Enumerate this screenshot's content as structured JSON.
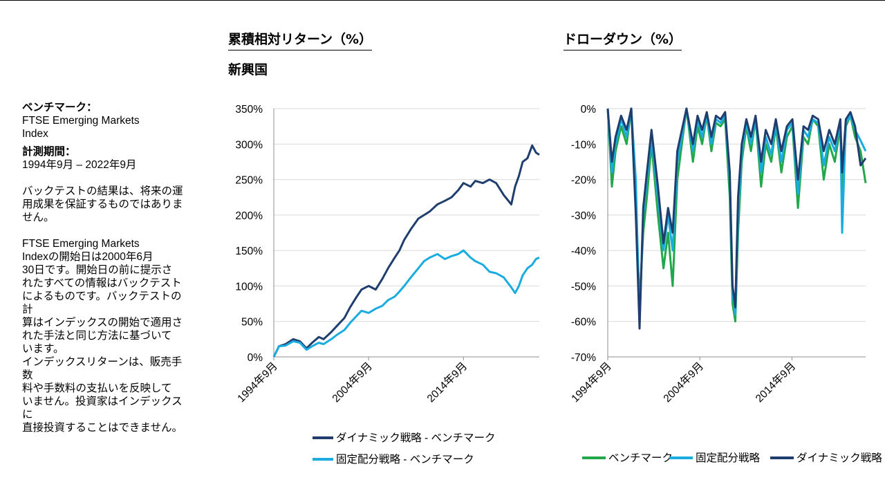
{
  "left_title": "累積相対リターン（%）",
  "left_subtitle": "新興国",
  "right_title": "ドローダウン（%）",
  "side": {
    "benchmark_label": "ベンチマーク：",
    "benchmark_value_line1": "FTSE Emerging Markets",
    "benchmark_value_line2": "Index",
    "period_label": "計測期間：",
    "period_value": "1994年9月 – 2022年9月",
    "note1": [
      "バックテストの結果は、将来の運",
      "用成果を保証するものではありま",
      "せん。"
    ],
    "note2": [
      "FTSE Emerging Markets",
      "Indexの開始日は2000年6月",
      "30日です。開始日の前に提示さ",
      "れたすべての情報はバックテスト",
      "によるものです。バックテストの計",
      "算はインデックスの開始で適用さ",
      "れた手法と同じ方法に基づいて",
      "います。"
    ],
    "note3": [
      "インデックスリターンは、販売手数",
      "料や手数料の支払いを反映して",
      "いません。投資家はインデックスに",
      "直接投資することはできません。"
    ]
  },
  "chart_data": [
    {
      "type": "line",
      "ylim": [
        0,
        350
      ],
      "yticks": [
        "0%",
        "50%",
        "100%",
        "150%",
        "200%",
        "250%",
        "300%",
        "350%"
      ],
      "xlim": [
        1994.75,
        2022.75
      ],
      "xticks": [
        {
          "label": "1994年9月",
          "x": 1994.75
        },
        {
          "label": "2004年9月",
          "x": 2004.75
        },
        {
          "label": "2014年9月",
          "x": 2014.75
        }
      ],
      "series": [
        {
          "name": "ダイナミック戦略 - ベンチマーク",
          "color": "#1f3e6e",
          "x": [
            1994.75,
            1995.3,
            1996,
            1996.8,
            1997.5,
            1998.2,
            1998.8,
            1999.5,
            2000,
            2000.8,
            2001.5,
            2002.2,
            2002.8,
            2003.5,
            2004,
            2004.75,
            2005.5,
            2006.2,
            2006.8,
            2007.5,
            2008,
            2008.5,
            2009.2,
            2010,
            2010.6,
            2011.2,
            2012,
            2012.8,
            2013.5,
            2014.2,
            2014.75,
            2015.5,
            2016,
            2016.8,
            2017.5,
            2018.2,
            2019,
            2019.8,
            2020.2,
            2020.6,
            2021,
            2021.5,
            2022,
            2022.4,
            2022.75
          ],
          "y": [
            0,
            15,
            18,
            25,
            22,
            12,
            20,
            28,
            25,
            35,
            45,
            55,
            70,
            85,
            95,
            100,
            95,
            110,
            125,
            140,
            150,
            165,
            180,
            195,
            200,
            205,
            215,
            220,
            225,
            235,
            245,
            240,
            248,
            245,
            250,
            245,
            228,
            215,
            240,
            255,
            275,
            280,
            298,
            288,
            285
          ]
        },
        {
          "name": "固定配分戦略 - ベンチマーク",
          "color": "#1aace0",
          "x": [
            1994.75,
            1995.3,
            1996,
            1996.8,
            1997.5,
            1998.2,
            1998.8,
            1999.5,
            2000,
            2000.8,
            2001.5,
            2002.2,
            2002.8,
            2003.5,
            2004,
            2004.75,
            2005.5,
            2006.2,
            2006.8,
            2007.5,
            2008,
            2008.5,
            2009.2,
            2010,
            2010.6,
            2011.2,
            2012,
            2012.8,
            2013.5,
            2014.2,
            2014.75,
            2015.5,
            2016,
            2016.8,
            2017.5,
            2018.2,
            2019,
            2019.8,
            2020.2,
            2020.6,
            2021,
            2021.5,
            2022,
            2022.4,
            2022.75
          ],
          "y": [
            0,
            15,
            16,
            22,
            20,
            10,
            15,
            20,
            18,
            25,
            32,
            38,
            48,
            58,
            65,
            62,
            68,
            72,
            80,
            85,
            92,
            100,
            112,
            125,
            135,
            140,
            145,
            138,
            142,
            145,
            150,
            140,
            135,
            130,
            120,
            118,
            112,
            98,
            90,
            100,
            115,
            125,
            130,
            138,
            140
          ]
        }
      ]
    },
    {
      "type": "line",
      "ylim": [
        -70,
        0
      ],
      "yticks": [
        "0%",
        "-10%",
        "-20%",
        "-30%",
        "-40%",
        "-50%",
        "-60%",
        "-70%"
      ],
      "xlim": [
        1994.75,
        2022.75
      ],
      "xticks": [
        {
          "label": "1994年9月",
          "x": 1994.75
        },
        {
          "label": "2004年9月",
          "x": 2004.75
        },
        {
          "label": "2014年9月",
          "x": 2014.75
        }
      ],
      "series": [
        {
          "name": "ベンチマーク",
          "color": "#22a84a",
          "x": [
            1994.75,
            1995.2,
            1995.6,
            1996.2,
            1996.8,
            1997.3,
            1997.8,
            1998.2,
            1998.6,
            1999,
            1999.5,
            2000.2,
            2000.8,
            2001.3,
            2001.8,
            2002.3,
            2002.8,
            2003.3,
            2004,
            2004.5,
            2005,
            2005.5,
            2006,
            2006.5,
            2007,
            2007.5,
            2008,
            2008.3,
            2008.6,
            2008.9,
            2009.3,
            2009.8,
            2010.3,
            2010.8,
            2011.4,
            2011.9,
            2012.5,
            2013,
            2013.6,
            2014.2,
            2014.8,
            2015.4,
            2016,
            2016.5,
            2017,
            2017.6,
            2018.2,
            2018.8,
            2019.4,
            2020,
            2020.2,
            2020.6,
            2021.1,
            2021.6,
            2022.2,
            2022.75
          ],
          "y": [
            0,
            -22,
            -12,
            -5,
            -10,
            0,
            -25,
            -55,
            -35,
            -25,
            -10,
            -30,
            -45,
            -35,
            -50,
            -20,
            -10,
            0,
            -15,
            -5,
            -10,
            -2,
            -12,
            -4,
            -5,
            -3,
            -25,
            -55,
            -60,
            -35,
            -15,
            -5,
            -12,
            -3,
            -22,
            -10,
            -15,
            -5,
            -18,
            -8,
            -5,
            -28,
            -8,
            -10,
            -3,
            -5,
            -20,
            -10,
            -15,
            -5,
            -25,
            -5,
            -2,
            -8,
            -12,
            -21
          ]
        },
        {
          "name": "固定配分戦略",
          "color": "#1aace0",
          "x": [
            1994.75,
            1995.2,
            1995.6,
            1996.2,
            1996.8,
            1997.3,
            1997.8,
            1998.2,
            1998.6,
            1999,
            1999.5,
            2000.2,
            2000.8,
            2001.3,
            2001.8,
            2002.3,
            2002.8,
            2003.3,
            2004,
            2004.5,
            2005,
            2005.5,
            2006,
            2006.5,
            2007,
            2007.5,
            2008,
            2008.3,
            2008.6,
            2008.9,
            2009.3,
            2009.8,
            2010.3,
            2010.8,
            2011.4,
            2011.9,
            2012.5,
            2013,
            2013.6,
            2014.2,
            2014.8,
            2015.4,
            2016,
            2016.5,
            2017,
            2017.6,
            2018.2,
            2018.8,
            2019.4,
            2020,
            2020.2,
            2020.6,
            2021.1,
            2021.6,
            2022.2,
            2022.75
          ],
          "y": [
            0,
            -18,
            -10,
            -3,
            -8,
            0,
            -20,
            -60,
            -30,
            -20,
            -8,
            -25,
            -40,
            -30,
            -40,
            -15,
            -8,
            0,
            -12,
            -3,
            -8,
            -2,
            -10,
            -3,
            -4,
            -2,
            -20,
            -52,
            -58,
            -30,
            -12,
            -4,
            -10,
            -3,
            -18,
            -8,
            -13,
            -4,
            -15,
            -6,
            -4,
            -24,
            -6,
            -8,
            -3,
            -4,
            -16,
            -8,
            -12,
            -4,
            -35,
            -4,
            -2,
            -6,
            -9,
            -12
          ]
        },
        {
          "name": "ダイナミック戦略",
          "color": "#1f3e6e",
          "x": [
            1994.75,
            1995.2,
            1995.6,
            1996.2,
            1996.8,
            1997.3,
            1997.8,
            1998.2,
            1998.6,
            1999,
            1999.5,
            2000.2,
            2000.8,
            2001.3,
            2001.8,
            2002.3,
            2002.8,
            2003.3,
            2004,
            2004.5,
            2005,
            2005.5,
            2006,
            2006.5,
            2007,
            2007.5,
            2008,
            2008.3,
            2008.6,
            2008.9,
            2009.3,
            2009.8,
            2010.3,
            2010.8,
            2011.4,
            2011.9,
            2012.5,
            2013,
            2013.6,
            2014.2,
            2014.8,
            2015.4,
            2016,
            2016.5,
            2017,
            2017.6,
            2018.2,
            2018.8,
            2019.4,
            2020,
            2020.2,
            2020.6,
            2021.1,
            2021.6,
            2022.2,
            2022.75
          ],
          "y": [
            0,
            -15,
            -8,
            -2,
            -6,
            0,
            -30,
            -62,
            -28,
            -18,
            -6,
            -22,
            -38,
            -28,
            -35,
            -12,
            -6,
            0,
            -10,
            -2,
            -6,
            -1,
            -8,
            -2,
            -3,
            -1,
            -18,
            -50,
            -56,
            -25,
            -10,
            -3,
            -8,
            -2,
            -15,
            -6,
            -10,
            -3,
            -12,
            -5,
            -3,
            -20,
            -5,
            -6,
            -2,
            -3,
            -12,
            -6,
            -10,
            -3,
            -18,
            -3,
            -1,
            -5,
            -16,
            -14
          ]
        }
      ]
    }
  ]
}
